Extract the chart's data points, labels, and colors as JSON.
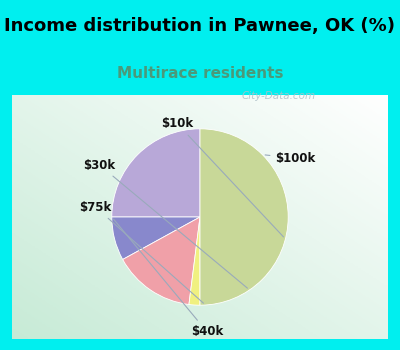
{
  "title": "Income distribution in Pawnee, OK (%)",
  "subtitle": "Multirace residents",
  "title_color": "#000000",
  "subtitle_color": "#4a9a7a",
  "background_outer": "#00efef",
  "watermark": "City-Data.com",
  "slices": [
    {
      "label": "$100k",
      "value": 25,
      "color": "#b8a8d8"
    },
    {
      "label": "$10k",
      "value": 8,
      "color": "#8888cc"
    },
    {
      "label": "$30k",
      "value": 15,
      "color": "#f0a0a8"
    },
    {
      "label": "$75k",
      "value": 2,
      "color": "#f0f080"
    },
    {
      "label": "$40k",
      "value": 50,
      "color": "#c8d898"
    }
  ],
  "label_fontsize": 8.5,
  "title_fontsize": 13,
  "subtitle_fontsize": 11,
  "startangle": 90
}
